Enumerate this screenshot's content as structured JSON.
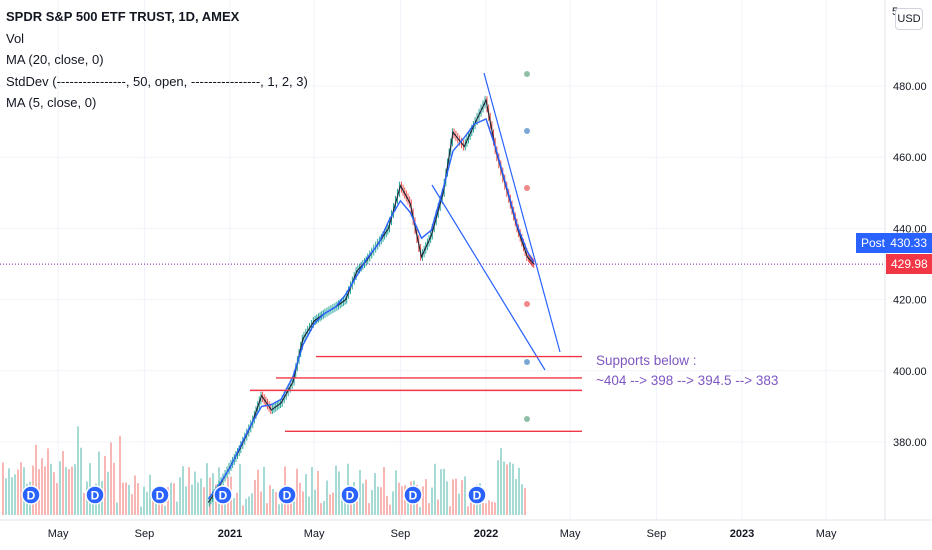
{
  "legend": {
    "title": "SPDR S&P 500 ETF TRUST, 1D, AMEX",
    "ind1": "Vol",
    "ind2": "MA (20, close, 0)",
    "ind3": "StdDev (----------------, 50, open, ----------------, 1, 2, 3)",
    "ind4": "MA (5, close, 0)"
  },
  "currency_label": "USD",
  "axis_top_partial": "5",
  "post_tag": {
    "label": "Post",
    "value": "430.33",
    "color": "#2962ff"
  },
  "last_price_tag": {
    "value": "429.98",
    "color": "#f23645"
  },
  "colors": {
    "up": "#26a69a",
    "down": "#ef5350",
    "ma": "#2962ff",
    "support": "#f23645",
    "annotation": "#7e57c2"
  },
  "annotation": {
    "line1": "Supports below :",
    "line2": "~404 --> 398 --> 394.5 --> 383"
  },
  "dividend_marker": "D",
  "chart_data": {
    "type": "line",
    "title": "SPDR S&P 500 ETF TRUST, 1D, AMEX",
    "y_ticks": [
      "480.00",
      "460.00",
      "440.00",
      "420.00",
      "400.00",
      "380.00"
    ],
    "y_tick_values": [
      480,
      460,
      440,
      420,
      400,
      380
    ],
    "x_ticks": [
      "May",
      "Sep",
      "2021",
      "May",
      "Sep",
      "2022",
      "May",
      "Sep",
      "2023",
      "May"
    ],
    "x_tick_dates": [
      "2020-05-01",
      "2020-09-01",
      "2021-01-01",
      "2021-05-01",
      "2021-09-01",
      "2022-01-01",
      "2022-05-01",
      "2022-09-01",
      "2023-01-01",
      "2023-05-01"
    ],
    "ylim": [
      360.5,
      510.7
    ],
    "series": [
      {
        "x": [
          "2020-12-01",
          "2020-12-15",
          "2021-01-01",
          "2021-01-15",
          "2021-02-01",
          "2021-02-15",
          "2021-03-01",
          "2021-03-15",
          "2021-04-01",
          "2021-04-15",
          "2021-05-01",
          "2021-05-15",
          "2021-06-01",
          "2021-06-15",
          "2021-07-01",
          "2021-07-15",
          "2021-08-01",
          "2021-08-15",
          "2021-09-01",
          "2021-09-15",
          "2021-10-01",
          "2021-10-15",
          "2021-11-01",
          "2021-11-15",
          "2021-12-01",
          "2021-12-15",
          "2022-01-01",
          "2022-01-15",
          "2022-02-01",
          "2022-02-15",
          "2022-03-01",
          "2022-03-10"
        ],
        "values": [
          363,
          367,
          373,
          378,
          385,
          393,
          389,
          391,
          397,
          409,
          414,
          416,
          418,
          420,
          428,
          431,
          436,
          440,
          452,
          447,
          432,
          438,
          450,
          467,
          463,
          469,
          476,
          462,
          450,
          440,
          432,
          430
        ]
      }
    ],
    "support_levels": [
      404,
      398,
      394.5,
      383
    ],
    "last_price": 429.98,
    "post_price": 430.33
  }
}
